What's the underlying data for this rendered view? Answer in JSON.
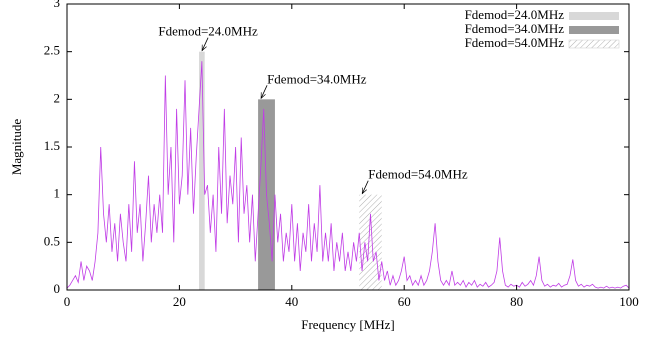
{
  "chart_data": {
    "type": "spectrum",
    "xlabel": "Frequency [MHz]",
    "ylabel": "Magnitude",
    "xlim": [
      0,
      100
    ],
    "ylim": [
      0,
      3
    ],
    "xticks": [
      0,
      20,
      40,
      60,
      80,
      100
    ],
    "yticks": [
      0,
      0.5,
      1,
      1.5,
      2,
      2.5,
      3
    ],
    "legend": "upper right",
    "line": {
      "color": "#c03ce6",
      "x": [
        0,
        0.5,
        1,
        1.5,
        2,
        2.5,
        3,
        3.5,
        4,
        4.5,
        5,
        5.5,
        6,
        6.5,
        7,
        7.5,
        8,
        8.5,
        9,
        9.5,
        10,
        10.5,
        11,
        11.5,
        12,
        12.5,
        13,
        13.5,
        14,
        14.5,
        15,
        15.5,
        16,
        16.5,
        17,
        17.5,
        18,
        18.5,
        19,
        19.5,
        20,
        20.5,
        21,
        21.5,
        22,
        22.5,
        23,
        23.5,
        24,
        24.5,
        25,
        25.5,
        26,
        26.5,
        27,
        27.5,
        28,
        28.5,
        29,
        29.5,
        30,
        30.5,
        31,
        31.5,
        32,
        32.5,
        33,
        33.5,
        34,
        34.5,
        35,
        35.5,
        36,
        36.5,
        37,
        37.5,
        38,
        38.5,
        39,
        39.5,
        40,
        40.5,
        41,
        41.5,
        42,
        42.5,
        43,
        43.5,
        44,
        44.5,
        45,
        45.5,
        46,
        46.5,
        47,
        47.5,
        48,
        48.5,
        49,
        49.5,
        50,
        50.5,
        51,
        51.5,
        52,
        52.5,
        53,
        53.5,
        54,
        54.5,
        55,
        55.5,
        56,
        56.5,
        57,
        57.5,
        58,
        58.5,
        59,
        59.5,
        60,
        60.5,
        61,
        61.5,
        62,
        62.5,
        63,
        63.5,
        64,
        64.5,
        65,
        65.5,
        66,
        66.5,
        67,
        67.5,
        68,
        68.5,
        69,
        69.5,
        70,
        70.5,
        71,
        71.5,
        72,
        72.5,
        73,
        73.5,
        74,
        74.5,
        75,
        75.5,
        76,
        76.5,
        77,
        77.5,
        78,
        78.5,
        79,
        79.5,
        80,
        80.5,
        81,
        81.5,
        82,
        82.5,
        83,
        83.5,
        84,
        84.5,
        85,
        85.5,
        86,
        86.5,
        87,
        87.5,
        88,
        88.5,
        89,
        89.5,
        90,
        90.5,
        91,
        91.5,
        92,
        92.5,
        93,
        93.5,
        94,
        94.5,
        95,
        95.5,
        96,
        96.5,
        97,
        97.5,
        98,
        98.5,
        99,
        99.5,
        100
      ],
      "values": [
        0.02,
        0.05,
        0.1,
        0.15,
        0.08,
        0.3,
        0.1,
        0.25,
        0.2,
        0.1,
        0.3,
        0.6,
        1.5,
        0.8,
        0.5,
        0.9,
        0.4,
        0.7,
        0.3,
        0.8,
        0.5,
        0.3,
        0.9,
        0.4,
        1.35,
        0.6,
        0.9,
        0.3,
        0.7,
        1.2,
        0.5,
        0.9,
        0.6,
        1.0,
        0.6,
        2.25,
        1.0,
        1.5,
        0.5,
        1.9,
        0.9,
        1.2,
        2.2,
        1.0,
        1.7,
        0.8,
        1.4,
        1.9,
        2.4,
        1.0,
        1.1,
        0.6,
        1.0,
        0.4,
        1.5,
        0.8,
        1.9,
        0.7,
        1.2,
        0.9,
        1.5,
        0.5,
        1.6,
        0.8,
        1.1,
        0.5,
        1.0,
        0.3,
        0.8,
        1.3,
        1.9,
        1.0,
        0.7,
        0.3,
        1.0,
        0.5,
        0.8,
        0.3,
        0.6,
        0.4,
        0.9,
        0.3,
        0.7,
        0.2,
        0.6,
        0.4,
        0.9,
        0.3,
        0.7,
        0.4,
        1.1,
        0.3,
        0.6,
        0.3,
        0.7,
        0.2,
        0.5,
        0.3,
        0.6,
        0.2,
        0.4,
        0.2,
        0.5,
        0.3,
        0.6,
        0.2,
        0.5,
        0.3,
        0.8,
        0.3,
        0.4,
        0.1,
        0.3,
        0.1,
        0.2,
        0.05,
        0.15,
        0.05,
        0.1,
        0.2,
        0.35,
        0.1,
        0.15,
        0.05,
        0.1,
        0.05,
        0.15,
        0.05,
        0.1,
        0.2,
        0.4,
        0.7,
        0.3,
        0.1,
        0.05,
        0.1,
        0.05,
        0.2,
        0.05,
        0.08,
        0.05,
        0.1,
        0.03,
        0.08,
        0.05,
        0.1,
        0.03,
        0.06,
        0.04,
        0.08,
        0.03,
        0.05,
        0.08,
        0.2,
        0.55,
        0.2,
        0.05,
        0.03,
        0.06,
        0.04,
        0.05,
        0.03,
        0.08,
        0.04,
        0.06,
        0.1,
        0.05,
        0.15,
        0.35,
        0.1,
        0.04,
        0.06,
        0.03,
        0.05,
        0.04,
        0.07,
        0.03,
        0.05,
        0.06,
        0.15,
        0.32,
        0.1,
        0.04,
        0.06,
        0.03,
        0.05,
        0.04,
        0.06,
        0.03,
        0.02,
        0.03,
        0.02,
        0.04,
        0.02,
        0.03,
        0.02,
        0.03,
        0.02,
        0.04,
        0.05,
        0.02
      ]
    },
    "series": [
      {
        "name": "Fdemod=24.0MHz",
        "annotation": "Fdemod=24.0MHz",
        "color": "#d8d8d8",
        "fill": "solid",
        "x": [
          23.5,
          24.5
        ],
        "value": 2.5
      },
      {
        "name": "Fdemod=34.0MHz",
        "annotation": "Fdemod=34.0MHz",
        "color": "#999999",
        "fill": "solid",
        "x": [
          34,
          37
        ],
        "value": 2
      },
      {
        "name": "Fdemod=54.0MHz",
        "annotation": "Fdemod=54.0MHz",
        "color": "#bbbbbb",
        "fill": "hatch",
        "x": [
          52,
          56
        ],
        "value": 1
      }
    ]
  }
}
